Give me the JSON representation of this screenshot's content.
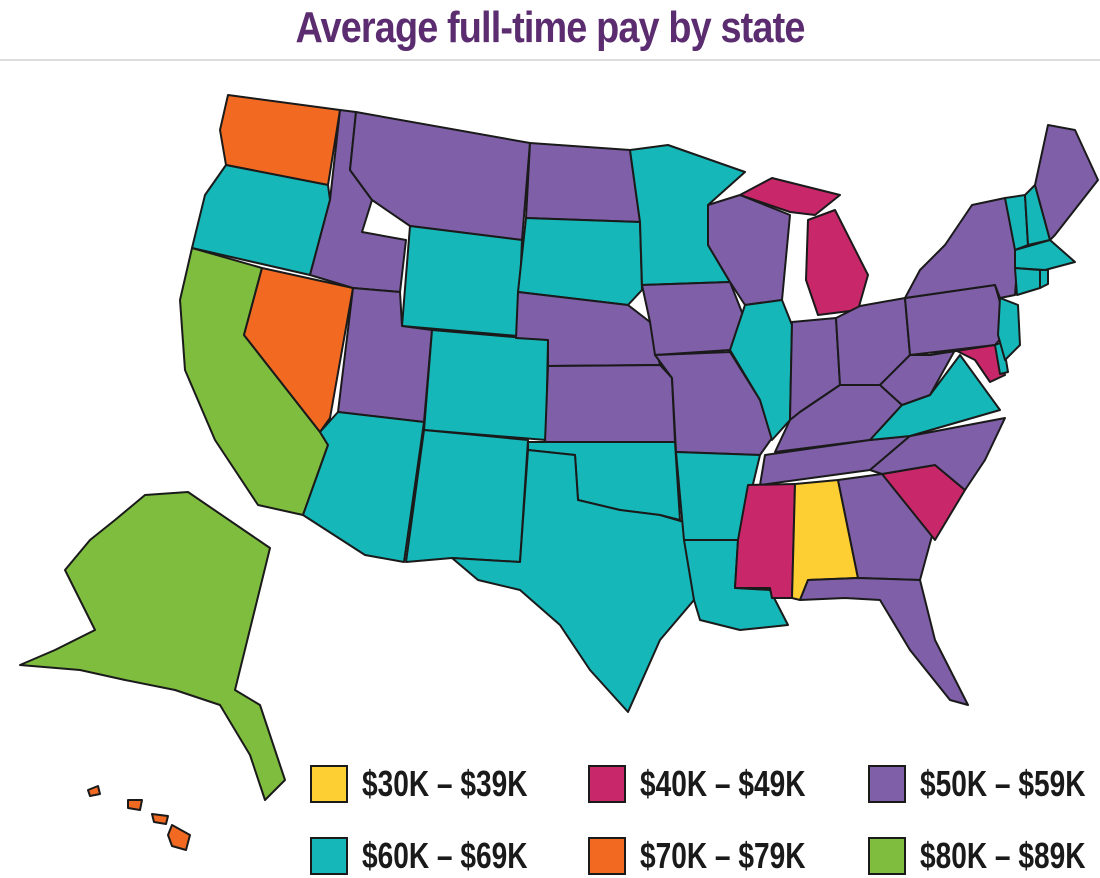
{
  "title": "Average full-time pay by state",
  "colors": {
    "title": "#5b2c6f",
    "b30": "#fecf33",
    "b40": "#c8286a",
    "b50": "#7f5fa8",
    "b60": "#15b7b9",
    "b70": "#f26a21",
    "b80": "#7fbd3e"
  },
  "legend": [
    {
      "key": "b30",
      "label": "$30K – $39K"
    },
    {
      "key": "b40",
      "label": "$40K – $49K"
    },
    {
      "key": "b50",
      "label": "$50K – $59K"
    },
    {
      "key": "b60",
      "label": "$60K – $69K"
    },
    {
      "key": "b70",
      "label": "$70K – $79K"
    },
    {
      "key": "b80",
      "label": "$80K – $89K"
    }
  ],
  "states": {
    "AL": "b30",
    "MI": "b40",
    "MS": "b40",
    "SC": "b40",
    "MD": "b40",
    "MT": "b50",
    "ID": "b50",
    "ND": "b50",
    "UT": "b50",
    "NE": "b50",
    "KS": "b50",
    "IA": "b50",
    "MO": "b50",
    "WI": "b50",
    "IN": "b50",
    "OH": "b50",
    "KY": "b50",
    "TN": "b50",
    "WV": "b50",
    "NC": "b50",
    "GA": "b50",
    "FL": "b50",
    "PA": "b50",
    "NY": "b50",
    "ME": "b50",
    "OR": "b60",
    "WY": "b60",
    "SD": "b60",
    "CO": "b60",
    "AZ": "b60",
    "NM": "b60",
    "TX": "b60",
    "OK": "b60",
    "AR": "b60",
    "LA": "b60",
    "MN": "b60",
    "IL": "b60",
    "VA": "b60",
    "NJ": "b60",
    "DE": "b60",
    "VT": "b60",
    "NH": "b60",
    "MA": "b60",
    "CT": "b60",
    "RI": "b60",
    "WA": "b70",
    "NV": "b70",
    "HI": "b70",
    "CA": "b80",
    "AK": "b80"
  }
}
